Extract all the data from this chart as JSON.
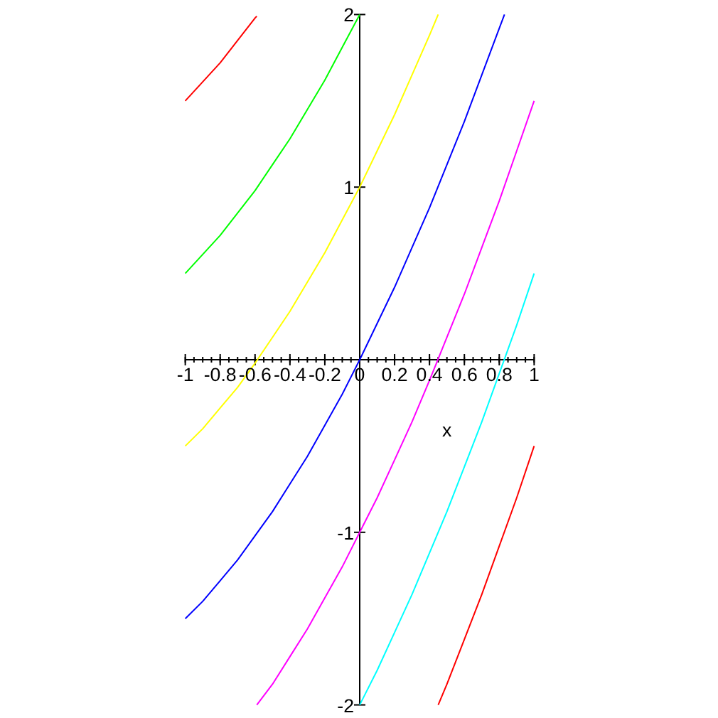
{
  "chart_data": {
    "type": "line",
    "xlabel": "x",
    "xlim": [
      -1,
      1
    ],
    "ylim": [
      -2,
      2
    ],
    "xticks": [
      -1,
      -0.8,
      -0.6,
      -0.4,
      -0.2,
      0,
      0.2,
      0.4,
      0.6,
      0.8,
      1
    ],
    "yticks": [
      -2,
      -1,
      1,
      2
    ],
    "grid": false,
    "series": [
      {
        "color": "#ff0000",
        "x": [
          -1,
          -0.9,
          -0.8,
          -0.7,
          -0.6,
          -0.59
        ],
        "values": [
          1.5,
          1.61,
          1.72,
          1.85,
          1.98,
          1.99
        ]
      },
      {
        "color": "#00ff00",
        "x": [
          -1,
          -0.9,
          -0.8,
          -0.7,
          -0.6,
          -0.5,
          -0.4,
          -0.3,
          -0.2,
          -0.1,
          0
        ],
        "values": [
          0.5,
          0.61,
          0.72,
          0.85,
          0.98,
          1.13,
          1.28,
          1.45,
          1.62,
          1.81,
          2.0
        ]
      },
      {
        "color": "#ffff00",
        "x": [
          -1,
          -0.9,
          -0.8,
          -0.7,
          -0.6,
          -0.5,
          -0.4,
          -0.3,
          -0.2,
          -0.1,
          0,
          0.1,
          0.2,
          0.3,
          0.4,
          0.45
        ],
        "values": [
          -0.5,
          -0.4,
          -0.28,
          -0.16,
          -0.02,
          0.13,
          0.28,
          0.45,
          0.62,
          0.81,
          1.0,
          1.21,
          1.42,
          1.65,
          1.88,
          2.0
        ]
      },
      {
        "color": "#0000ff",
        "x": [
          -1,
          -0.9,
          -0.8,
          -0.7,
          -0.6,
          -0.5,
          -0.4,
          -0.3,
          -0.2,
          -0.1,
          0,
          0.1,
          0.2,
          0.3,
          0.4,
          0.5,
          0.6,
          0.7,
          0.8,
          0.83
        ],
        "values": [
          -1.5,
          -1.4,
          -1.28,
          -1.16,
          -1.02,
          -0.88,
          -0.72,
          -0.56,
          -0.38,
          -0.2,
          0,
          0.21,
          0.42,
          0.65,
          0.88,
          1.13,
          1.38,
          1.65,
          1.92,
          2.0
        ]
      },
      {
        "color": "#ff00ff",
        "x": [
          -0.59,
          -0.5,
          -0.4,
          -0.3,
          -0.2,
          -0.1,
          0,
          0.1,
          0.2,
          0.3,
          0.4,
          0.5,
          0.6,
          0.7,
          0.8,
          0.9,
          1
        ],
        "values": [
          -2.0,
          -1.88,
          -1.72,
          -1.56,
          -1.38,
          -1.2,
          -1.0,
          -0.8,
          -0.58,
          -0.36,
          -0.12,
          0.13,
          0.38,
          0.65,
          0.92,
          1.21,
          1.5
        ]
      },
      {
        "color": "#00ffff",
        "x": [
          0,
          0.1,
          0.2,
          0.3,
          0.4,
          0.5,
          0.6,
          0.7,
          0.8,
          0.9,
          1
        ],
        "values": [
          -2.0,
          -1.8,
          -1.58,
          -1.36,
          -1.12,
          -0.88,
          -0.62,
          -0.36,
          -0.08,
          0.2,
          0.5
        ]
      },
      {
        "color": "#ff0000",
        "x": [
          0.45,
          0.5,
          0.6,
          0.7,
          0.8,
          0.9,
          1
        ],
        "values": [
          -2.0,
          -1.88,
          -1.62,
          -1.36,
          -1.08,
          -0.8,
          -0.5
        ]
      }
    ]
  }
}
